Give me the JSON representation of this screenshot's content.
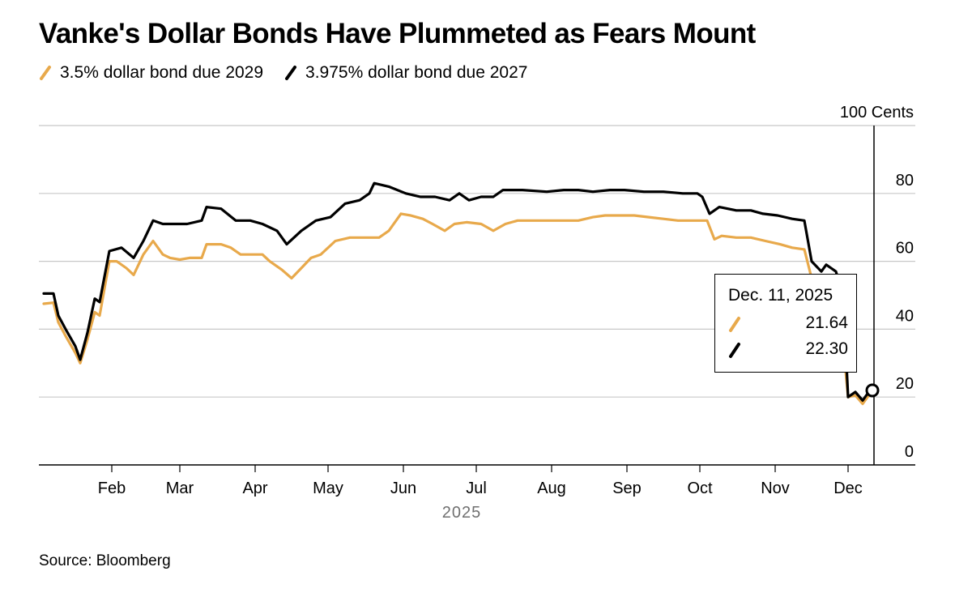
{
  "title": "Vanke's Dollar Bonds Have Plummeted as Fears Mount",
  "source": "Source: Bloomberg",
  "colors": {
    "bond2029": "#e8a94b",
    "bond2027": "#000000",
    "grid": "#c8c8c8"
  },
  "tooltip": {
    "date": "Dec. 11, 2025",
    "bond2029_value": "21.64",
    "bond2027_value": "22.30"
  },
  "chart_data": {
    "type": "line",
    "title": "Vanke's Dollar Bonds Have Plummeted as Fears Mount",
    "xlabel": "2025",
    "ylabel": "100 Cents",
    "ylim": [
      0,
      100
    ],
    "yticks": [
      0,
      20,
      40,
      60,
      80,
      100
    ],
    "ytick_labels": [
      "0",
      "20",
      "40",
      "60",
      "80",
      "100 Cents"
    ],
    "xlim": [
      "2025-01-02",
      "2025-12-15"
    ],
    "xticks": [
      "2025-02-01",
      "2025-03-01",
      "2025-04-01",
      "2025-05-01",
      "2025-06-01",
      "2025-07-01",
      "2025-08-01",
      "2025-09-01",
      "2025-10-01",
      "2025-11-01",
      "2025-12-01"
    ],
    "xtick_labels": [
      "Feb",
      "Mar",
      "Apr",
      "May",
      "Jun",
      "Jul",
      "Aug",
      "Sep",
      "Oct",
      "Nov",
      "Dec"
    ],
    "grid": true,
    "legend_position": "top-left",
    "series": [
      {
        "name": "3.5% dollar bond due 2029",
        "color": "#e8a94b",
        "points": [
          [
            "2025-01-04",
            47.5
          ],
          [
            "2025-01-08",
            47.8
          ],
          [
            "2025-01-10",
            42
          ],
          [
            "2025-01-13",
            38
          ],
          [
            "2025-01-17",
            33
          ],
          [
            "2025-01-19",
            30
          ],
          [
            "2025-01-22",
            37
          ],
          [
            "2025-01-25",
            45
          ],
          [
            "2025-01-27",
            44
          ],
          [
            "2025-01-31",
            60
          ],
          [
            "2025-02-03",
            60
          ],
          [
            "2025-02-07",
            58
          ],
          [
            "2025-02-10",
            56
          ],
          [
            "2025-02-14",
            62
          ],
          [
            "2025-02-18",
            66
          ],
          [
            "2025-02-22",
            62
          ],
          [
            "2025-02-25",
            61
          ],
          [
            "2025-03-01",
            60.5
          ],
          [
            "2025-03-05",
            61
          ],
          [
            "2025-03-10",
            61
          ],
          [
            "2025-03-12",
            65
          ],
          [
            "2025-03-18",
            65
          ],
          [
            "2025-03-22",
            64
          ],
          [
            "2025-03-26",
            62
          ],
          [
            "2025-04-04",
            62
          ],
          [
            "2025-04-07",
            60
          ],
          [
            "2025-04-12",
            57.5
          ],
          [
            "2025-04-16",
            55
          ],
          [
            "2025-04-20",
            58
          ],
          [
            "2025-04-24",
            61
          ],
          [
            "2025-04-28",
            62
          ],
          [
            "2025-05-04",
            66
          ],
          [
            "2025-05-10",
            67
          ],
          [
            "2025-05-16",
            67
          ],
          [
            "2025-05-22",
            67
          ],
          [
            "2025-05-26",
            69
          ],
          [
            "2025-05-31",
            74
          ],
          [
            "2025-06-04",
            73.5
          ],
          [
            "2025-06-09",
            72.5
          ],
          [
            "2025-06-13",
            71
          ],
          [
            "2025-06-18",
            69
          ],
          [
            "2025-06-22",
            71
          ],
          [
            "2025-06-27",
            71.5
          ],
          [
            "2025-07-03",
            71
          ],
          [
            "2025-07-08",
            69
          ],
          [
            "2025-07-13",
            71
          ],
          [
            "2025-07-18",
            72
          ],
          [
            "2025-07-24",
            72
          ],
          [
            "2025-07-31",
            72
          ],
          [
            "2025-08-06",
            72
          ],
          [
            "2025-08-12",
            72
          ],
          [
            "2025-08-18",
            73
          ],
          [
            "2025-08-23",
            73.5
          ],
          [
            "2025-08-29",
            73.5
          ],
          [
            "2025-09-04",
            73.5
          ],
          [
            "2025-09-10",
            73
          ],
          [
            "2025-09-16",
            72.5
          ],
          [
            "2025-09-22",
            72
          ],
          [
            "2025-09-28",
            72
          ],
          [
            "2025-10-04",
            72
          ],
          [
            "2025-10-07",
            66.5
          ],
          [
            "2025-10-10",
            67.5
          ],
          [
            "2025-10-16",
            67
          ],
          [
            "2025-10-22",
            67
          ],
          [
            "2025-10-28",
            66
          ],
          [
            "2025-11-03",
            65
          ],
          [
            "2025-11-08",
            64
          ],
          [
            "2025-11-13",
            63.5
          ],
          [
            "2025-11-16",
            55
          ],
          [
            "2025-11-20",
            53
          ],
          [
            "2025-11-26",
            51
          ],
          [
            "2025-11-29",
            35
          ],
          [
            "2025-12-01",
            20
          ],
          [
            "2025-12-04",
            20.5
          ],
          [
            "2025-12-07",
            18
          ],
          [
            "2025-12-09",
            20
          ],
          [
            "2025-12-11",
            21.64
          ]
        ]
      },
      {
        "name": "3.975% dollar bond due 2027",
        "color": "#000000",
        "points": [
          [
            "2025-01-04",
            50.5
          ],
          [
            "2025-01-08",
            50.5
          ],
          [
            "2025-01-10",
            44
          ],
          [
            "2025-01-13",
            40
          ],
          [
            "2025-01-17",
            35
          ],
          [
            "2025-01-19",
            31
          ],
          [
            "2025-01-22",
            39
          ],
          [
            "2025-01-25",
            49
          ],
          [
            "2025-01-27",
            48
          ],
          [
            "2025-01-31",
            63
          ],
          [
            "2025-02-05",
            64
          ],
          [
            "2025-02-10",
            61
          ],
          [
            "2025-02-14",
            66
          ],
          [
            "2025-02-18",
            72
          ],
          [
            "2025-02-22",
            71
          ],
          [
            "2025-02-28",
            71
          ],
          [
            "2025-03-04",
            71
          ],
          [
            "2025-03-10",
            72
          ],
          [
            "2025-03-12",
            76
          ],
          [
            "2025-03-18",
            75.5
          ],
          [
            "2025-03-24",
            72
          ],
          [
            "2025-03-30",
            72
          ],
          [
            "2025-04-04",
            71
          ],
          [
            "2025-04-10",
            69
          ],
          [
            "2025-04-14",
            65
          ],
          [
            "2025-04-20",
            69
          ],
          [
            "2025-04-26",
            72
          ],
          [
            "2025-05-02",
            73
          ],
          [
            "2025-05-08",
            77
          ],
          [
            "2025-05-14",
            78
          ],
          [
            "2025-05-18",
            80
          ],
          [
            "2025-05-20",
            83
          ],
          [
            "2025-05-26",
            82
          ],
          [
            "2025-06-02",
            80
          ],
          [
            "2025-06-08",
            79
          ],
          [
            "2025-06-14",
            79
          ],
          [
            "2025-06-20",
            78
          ],
          [
            "2025-06-24",
            80
          ],
          [
            "2025-06-28",
            78
          ],
          [
            "2025-07-03",
            79
          ],
          [
            "2025-07-08",
            79
          ],
          [
            "2025-07-12",
            81
          ],
          [
            "2025-07-20",
            81
          ],
          [
            "2025-07-30",
            80.5
          ],
          [
            "2025-08-06",
            81
          ],
          [
            "2025-08-12",
            81
          ],
          [
            "2025-08-18",
            80.5
          ],
          [
            "2025-08-25",
            81
          ],
          [
            "2025-08-31",
            81
          ],
          [
            "2025-09-08",
            80.5
          ],
          [
            "2025-09-16",
            80.5
          ],
          [
            "2025-09-24",
            80
          ],
          [
            "2025-09-30",
            80
          ],
          [
            "2025-10-02",
            79
          ],
          [
            "2025-10-05",
            74
          ],
          [
            "2025-10-09",
            76
          ],
          [
            "2025-10-16",
            75
          ],
          [
            "2025-10-22",
            75
          ],
          [
            "2025-10-27",
            74
          ],
          [
            "2025-11-02",
            73.5
          ],
          [
            "2025-11-08",
            72.5
          ],
          [
            "2025-11-13",
            72
          ],
          [
            "2025-11-16",
            60
          ],
          [
            "2025-11-20",
            57
          ],
          [
            "2025-11-22",
            59
          ],
          [
            "2025-11-26",
            57
          ],
          [
            "2025-11-29",
            50
          ],
          [
            "2025-12-01",
            20
          ],
          [
            "2025-12-04",
            21.5
          ],
          [
            "2025-12-07",
            19
          ],
          [
            "2025-12-09",
            21
          ],
          [
            "2025-12-11",
            22.3
          ]
        ]
      }
    ]
  }
}
